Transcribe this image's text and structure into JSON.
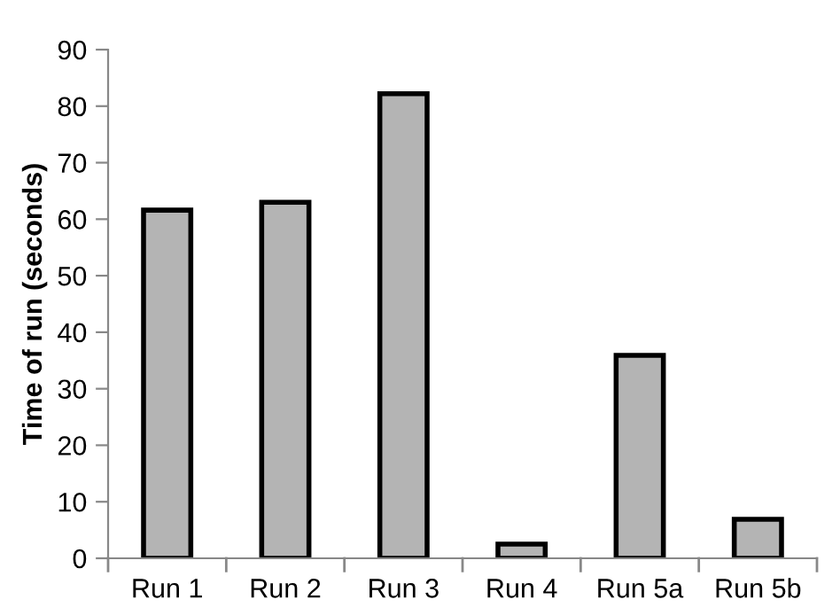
{
  "chart_data": {
    "type": "bar",
    "ylabel": "Time of run (seconds)",
    "categories": [
      "Run 1",
      "Run 2",
      "Run 3",
      "Run 4",
      "Run 5a",
      "Run 5b"
    ],
    "values": [
      61.6,
      63.0,
      82.2,
      2.5,
      35.9,
      6.9
    ],
    "color": "#b4b4b4",
    "ylim": [
      0,
      90
    ],
    "yticks": [
      0,
      10,
      20,
      30,
      40,
      50,
      60,
      70,
      80,
      90
    ],
    "grid": false,
    "legend": false
  }
}
